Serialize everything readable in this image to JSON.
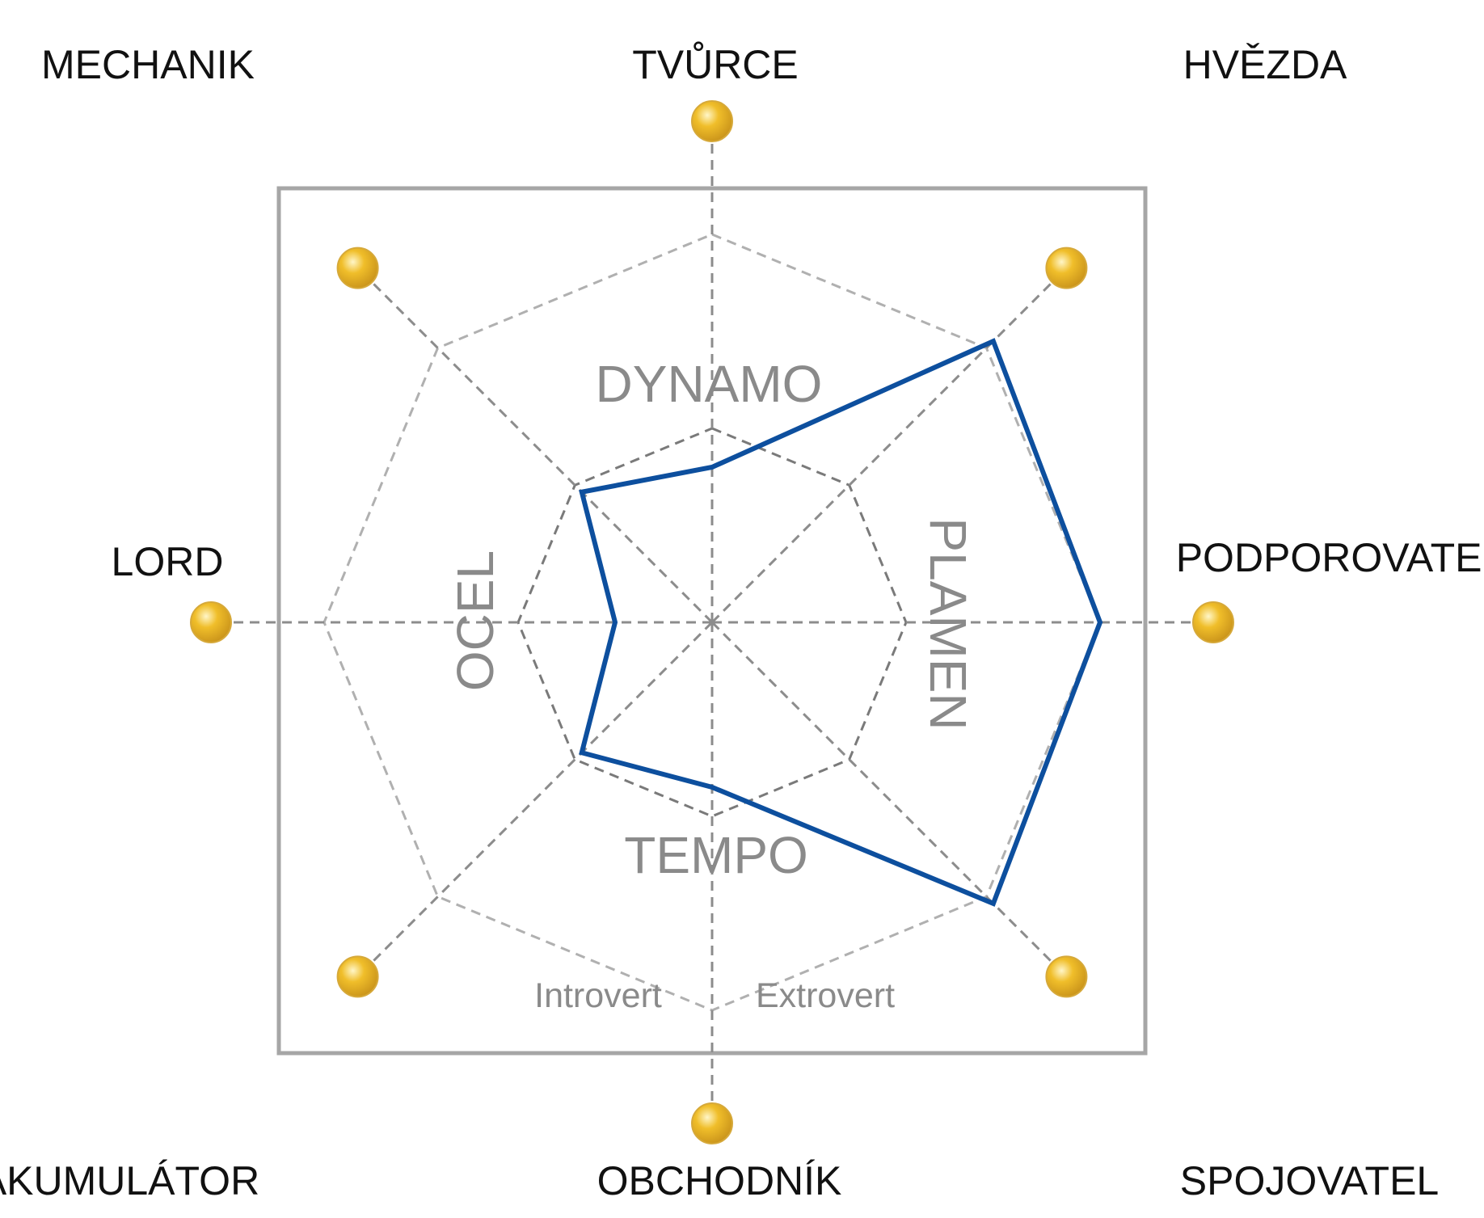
{
  "chart_data": {
    "type": "radar",
    "axes": [
      "TVŮRCE",
      "HVĚZDA",
      "PODPOROVATEL",
      "SPOJOVATEL",
      "OBCHODNÍK",
      "AKUMULÁTOR",
      "LORD",
      "MECHANIK"
    ],
    "quadrants": [
      "DYNAMO",
      "PLAMEN",
      "TEMPO",
      "OCEL"
    ],
    "bottom_labels": [
      "Introvert",
      "Extrovert"
    ],
    "rings": [
      1,
      2
    ],
    "range": [
      0,
      2
    ],
    "series": [
      {
        "values": [
          0.8,
          2.05,
          2.0,
          2.05,
          0.85,
          0.95,
          0.5,
          0.95
        ]
      }
    ],
    "grid": true,
    "colors": {
      "series": "#0d4f9e",
      "marker": "#f0be2a",
      "frame": "#a6a6a6",
      "grid": "#8c8c8c"
    }
  }
}
